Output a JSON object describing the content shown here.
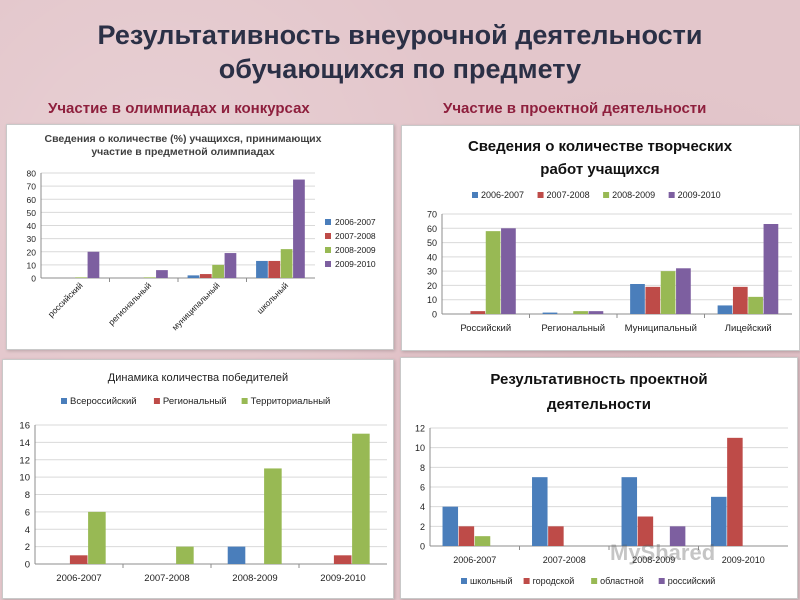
{
  "page": {
    "title_line1": "Результативность внеурочной деятельности",
    "title_line2": "обучающихся по предмету",
    "left_section": "Участие в олимпиадах и конкурсах",
    "right_section": "Участие в проектной деятельности",
    "watermark": "MyShared"
  },
  "colors": {
    "blue": "#4a7ebb",
    "red": "#be4b48",
    "green": "#98b954",
    "purple": "#7d5fa0",
    "title_color": "#2b3046",
    "section_color": "#8e1f3d"
  },
  "chart_data": [
    {
      "id": "olympiad",
      "type": "bar",
      "title_lines": [
        "Сведения о количестве (%) учащихся, принимающих",
        "участие в предметной олимпиадах"
      ],
      "categories": [
        "российский",
        "региональный",
        "муниципальный",
        "школьный"
      ],
      "rotated_categories": true,
      "series": [
        {
          "name": "2006-2007",
          "values": [
            0,
            0,
            2,
            13
          ]
        },
        {
          "name": "2007-2008",
          "values": [
            0,
            0,
            3,
            13
          ]
        },
        {
          "name": "2008-2009",
          "values": [
            0.5,
            0.5,
            10,
            22
          ]
        },
        {
          "name": "2009-2010",
          "values": [
            20,
            6,
            19,
            75
          ]
        }
      ],
      "ylim": [
        0,
        80
      ],
      "yticks": [
        0,
        10,
        20,
        30,
        40,
        50,
        60,
        70,
        80
      ],
      "grid": true,
      "legend": "right"
    },
    {
      "id": "creative",
      "type": "bar",
      "title_lines": [
        "Сведения о количестве творческих",
        "работ учащихся"
      ],
      "categories": [
        "Российский",
        "Региональный",
        "Муниципальный",
        "Лицейский"
      ],
      "series": [
        {
          "name": "2006-2007",
          "values": [
            0,
            1,
            21,
            6
          ]
        },
        {
          "name": "2007-2008",
          "values": [
            2,
            0,
            19,
            19
          ]
        },
        {
          "name": "2008-2009",
          "values": [
            58,
            2,
            30,
            12
          ]
        },
        {
          "name": "2009-2010",
          "values": [
            60,
            2,
            32,
            63
          ]
        }
      ],
      "ylim": [
        0,
        70
      ],
      "yticks": [
        0,
        10,
        20,
        30,
        40,
        50,
        60,
        70
      ],
      "grid": true,
      "legend": "top"
    },
    {
      "id": "winners",
      "type": "bar",
      "title_lines": [
        "Динамика количества победителей"
      ],
      "categories": [
        "2006-2007",
        "2007-2008",
        "2008-2009",
        "2009-2010"
      ],
      "series": [
        {
          "name": "Всероссийский",
          "values": [
            0,
            0,
            2,
            0
          ]
        },
        {
          "name": "Региональный",
          "values": [
            1,
            0,
            0,
            1
          ]
        },
        {
          "name": "Территориальный",
          "values": [
            6,
            2,
            11,
            15
          ]
        }
      ],
      "ylim": [
        0,
        16
      ],
      "yticks": [
        0,
        2,
        4,
        6,
        8,
        10,
        12,
        14,
        16
      ],
      "grid": true,
      "legend": "top"
    },
    {
      "id": "projects",
      "type": "bar",
      "title_lines": [
        "Результативность проектной",
        "деятельности"
      ],
      "categories": [
        "2006-2007",
        "2007-2008",
        "2008-2009",
        "2009-2010"
      ],
      "series": [
        {
          "name": "школьный",
          "values": [
            4,
            7,
            7,
            5
          ]
        },
        {
          "name": "городской",
          "values": [
            2,
            2,
            3,
            11
          ]
        },
        {
          "name": "областной",
          "values": [
            1,
            0,
            0,
            0
          ]
        },
        {
          "name": "российский",
          "values": [
            0,
            0,
            2,
            0
          ]
        }
      ],
      "ylim": [
        0,
        12
      ],
      "yticks": [
        0,
        2,
        4,
        6,
        8,
        10,
        12
      ],
      "grid": true,
      "legend": "bottom"
    }
  ]
}
